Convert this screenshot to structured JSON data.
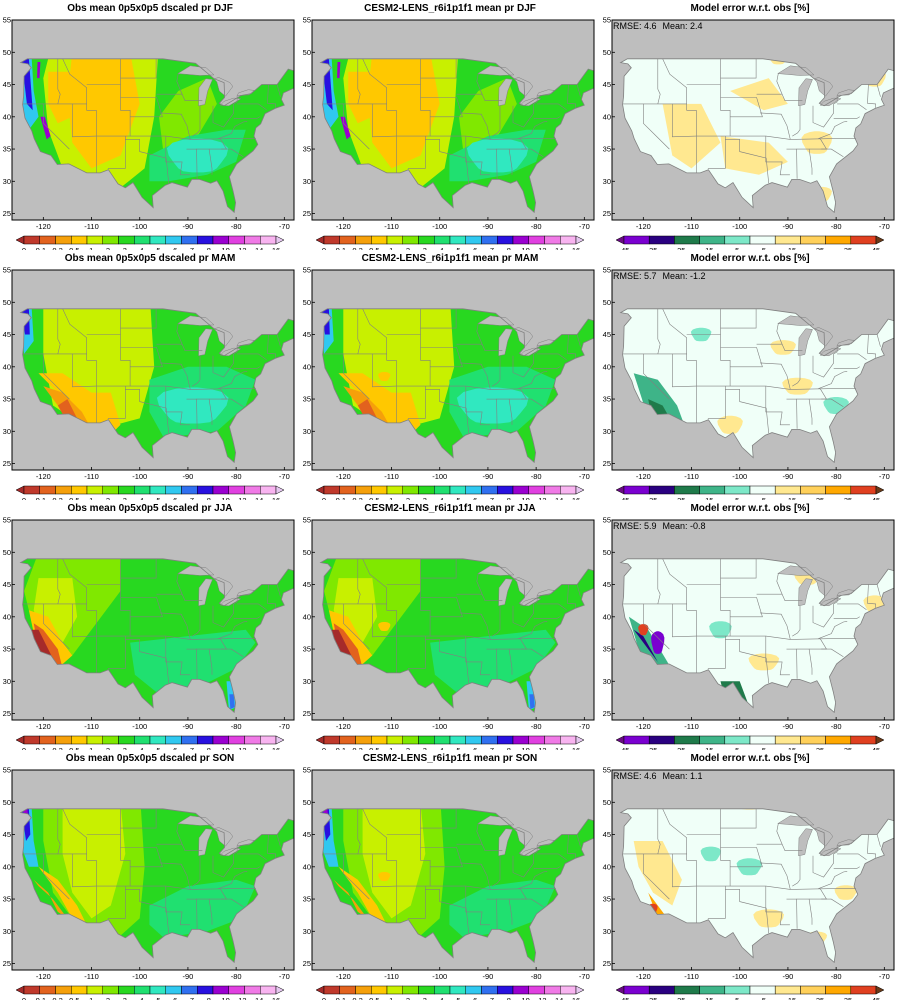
{
  "seasons": [
    {
      "id": "djf",
      "obs_title": "Obs mean 0p5x0p5 dscaled pr DJF",
      "model_title": "CESM2-LENS_r6i1p1f1 mean pr DJF",
      "error_title": "Model error w.r.t. obs [%]",
      "rmse_label": "RMSE: 4.6",
      "mean_label": "Mean: 2.4"
    },
    {
      "id": "mam",
      "obs_title": "Obs mean 0p5x0p5 dscaled pr MAM",
      "model_title": "CESM2-LENS_r6i1p1f1 mean pr MAM",
      "error_title": "Model error w.r.t. obs [%]",
      "rmse_label": "RMSE: 5.7",
      "mean_label": "Mean: -1.2"
    },
    {
      "id": "jja",
      "obs_title": "Obs mean 0p5x0p5 dscaled pr JJA",
      "model_title": "CESM2-LENS_r6i1p1f1 mean pr JJA",
      "error_title": "Model error w.r.t. obs [%]",
      "rmse_label": "RMSE: 5.9",
      "mean_label": "Mean: -0.8"
    },
    {
      "id": "son",
      "obs_title": "Obs mean 0p5x0p5 dscaled pr SON",
      "model_title": "CESM2-LENS_r6i1p1f1 mean pr SON",
      "error_title": "Model error w.r.t. obs [%]",
      "rmse_label": "RMSE: 4.6",
      "mean_label": "Mean: 1.1"
    }
  ],
  "axes": {
    "lon_ticks": [
      "-120",
      "-110",
      "-100",
      "-90",
      "-80",
      "-70"
    ],
    "lat_ticks": [
      "55",
      "50",
      "45",
      "40",
      "35",
      "30",
      "25"
    ]
  },
  "precip_colorbar": {
    "labels": [
      "0",
      "0.1",
      "0.2",
      "0.5",
      "1",
      "2",
      "3",
      "4",
      "5",
      "6",
      "7",
      "8",
      "10",
      "12",
      "14",
      "16"
    ],
    "colors": [
      "#a52a2a",
      "#c0392b",
      "#e2621e",
      "#f5a00a",
      "#ffc800",
      "#c8f000",
      "#80e800",
      "#28d820",
      "#20e070",
      "#30e8c0",
      "#30c8f0",
      "#3070f0",
      "#2810e0",
      "#9a00d0",
      "#e040e0",
      "#f07ae6",
      "#f8b4f0",
      "#e6c8f0"
    ]
  },
  "error_colorbar": {
    "labels": [
      "-45",
      "-35",
      "-25",
      "-15",
      "-5",
      "5",
      "15",
      "25",
      "35",
      "45"
    ],
    "colors": [
      "#6a0d83",
      "#7a00d0",
      "#2a0080",
      "#1f7a4a",
      "#3eb488",
      "#7de8c8",
      "#f0fff8",
      "#ffe890",
      "#ffd05a",
      "#ffa800",
      "#e04020",
      "#6b3a1a"
    ]
  },
  "colors": {
    "land_mask": "#bebebe",
    "border": "#808080",
    "error_background": "#f0fff8"
  }
}
